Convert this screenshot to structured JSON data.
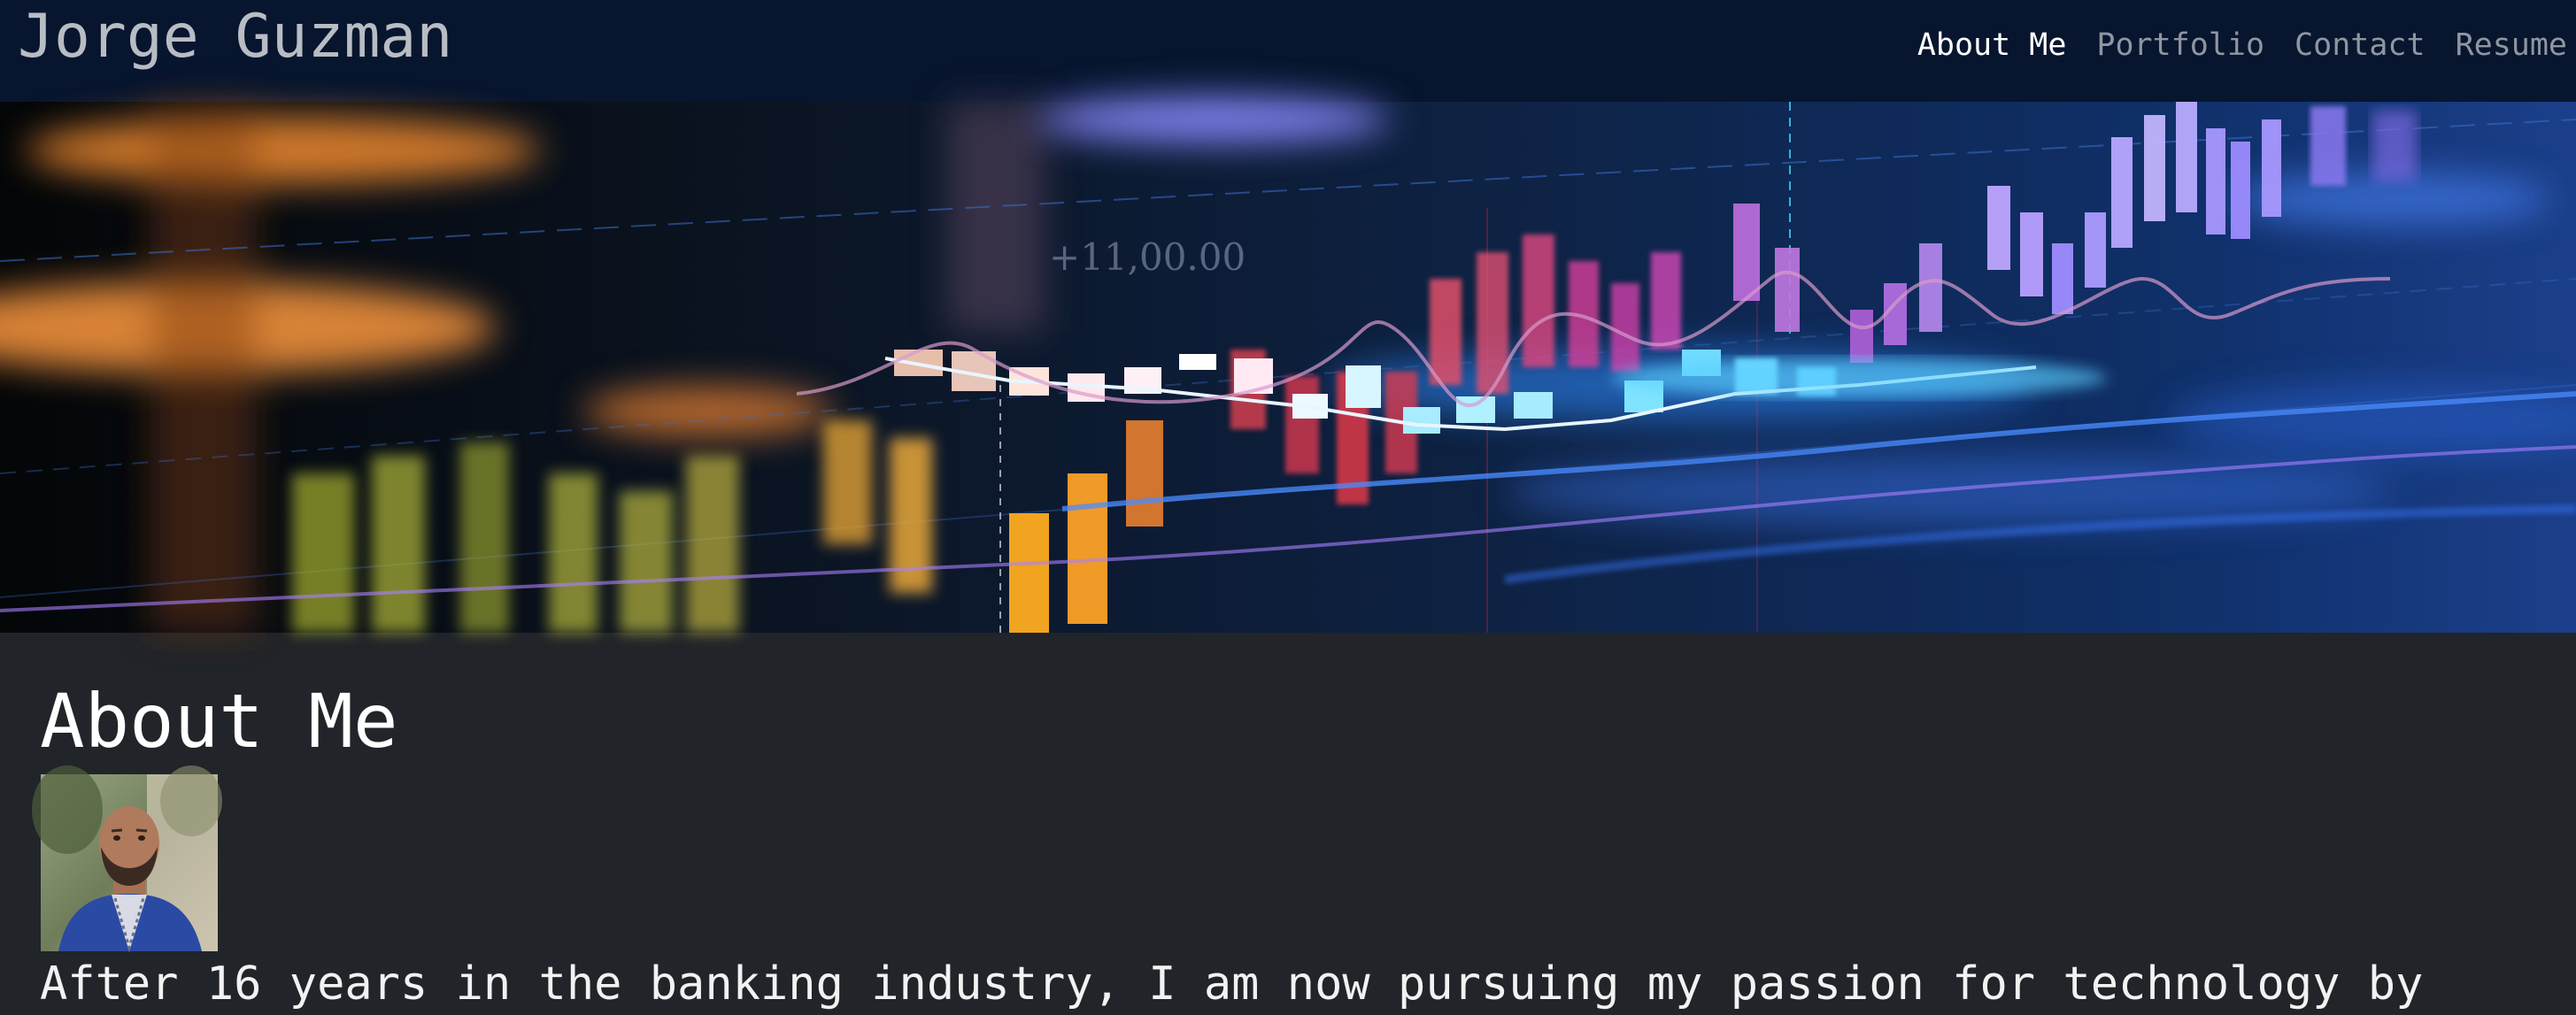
{
  "navbar": {
    "brand": "Jorge Guzman",
    "links": [
      {
        "label": "About Me",
        "active": true
      },
      {
        "label": "Portfolio",
        "active": false
      },
      {
        "label": "Contact",
        "active": false
      },
      {
        "label": "Resume",
        "active": false
      }
    ]
  },
  "hero": {
    "overlay_text": "+11,00.00"
  },
  "about": {
    "title": "About Me",
    "bio": "After 16 years in the banking industry, I am now pursuing my passion for technology by"
  },
  "colors": {
    "nav_background": "#07152e",
    "page_background": "#212429",
    "active_link": "#ffffff",
    "inactive_link": "#8f96a1"
  }
}
